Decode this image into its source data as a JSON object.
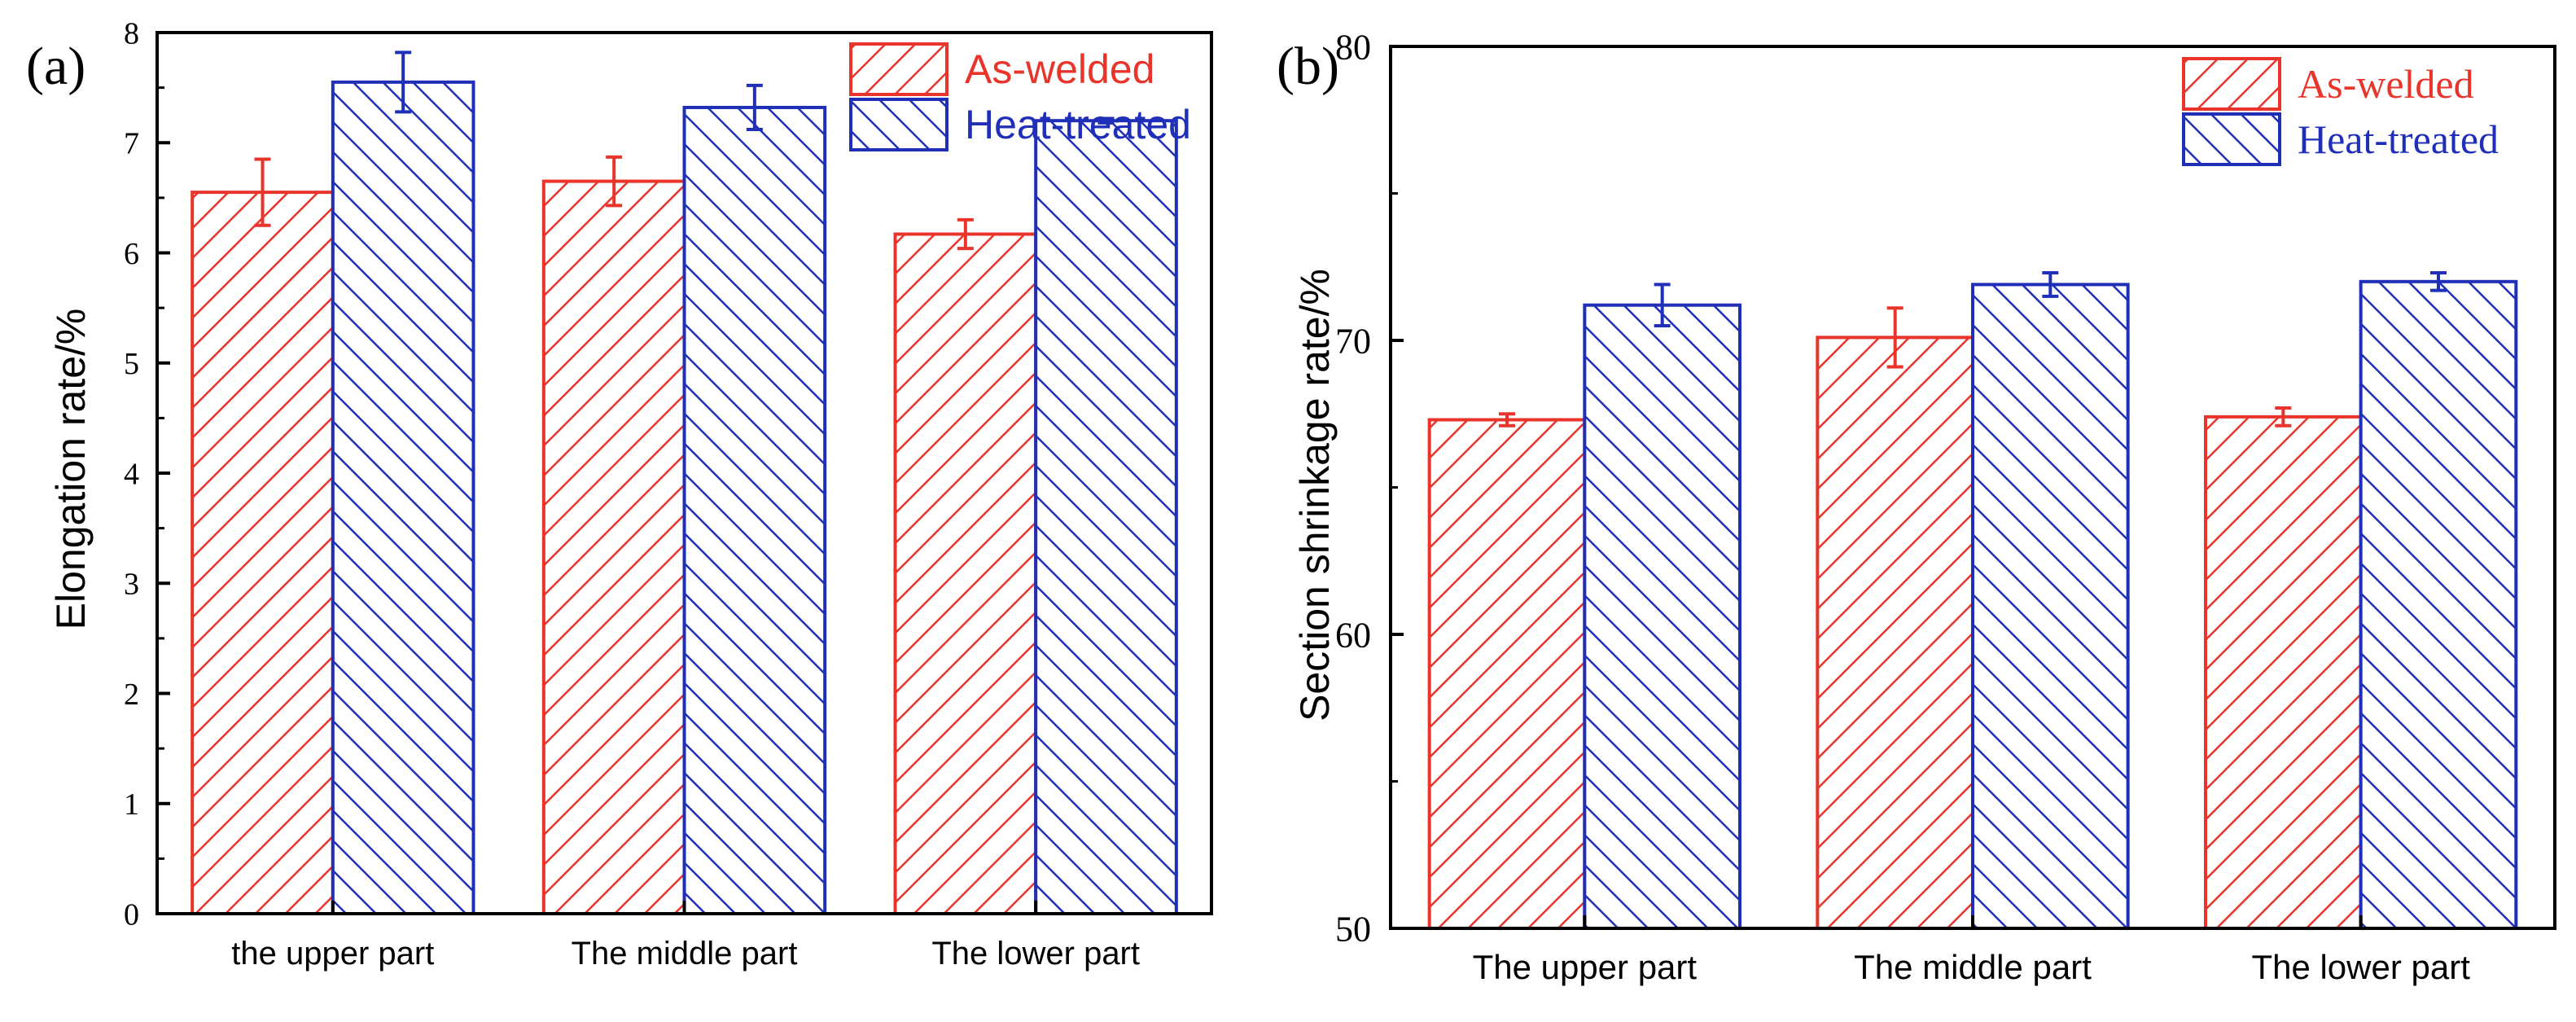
{
  "colors": {
    "as_welded": "#e8342a",
    "heat_treated": "#1f2fb8",
    "axis": "#000000"
  },
  "chart_data": [
    {
      "type": "bar",
      "panel_label": "(a)",
      "title": "",
      "xlabel": "",
      "ylabel": "Elongation rate/%",
      "categories": [
        "the upper part",
        "The middle part",
        "The lower part"
      ],
      "ylim": [
        0,
        8
      ],
      "yticks": [
        "0",
        "1",
        "2",
        "3",
        "4",
        "5",
        "6",
        "7",
        "8"
      ],
      "legend_position": "top-right",
      "series": [
        {
          "name": "As-welded",
          "values": [
            6.55,
            6.65,
            6.17
          ],
          "errors": [
            0.3,
            0.22,
            0.13
          ]
        },
        {
          "name": "Heat-treated",
          "values": [
            7.55,
            7.32,
            7.2
          ],
          "errors": [
            0.27,
            0.2,
            0.02
          ]
        }
      ]
    },
    {
      "type": "bar",
      "panel_label": "(b)",
      "title": "",
      "xlabel": "",
      "ylabel": "Section shrinkage rate/%",
      "categories": [
        "The upper part",
        "The middle part",
        "The lower part"
      ],
      "ylim": [
        50,
        80
      ],
      "yticks": [
        "50",
        "60",
        "70",
        "80"
      ],
      "legend_position": "top-right",
      "series": [
        {
          "name": "As-welded",
          "values": [
            67.3,
            70.1,
            67.4
          ],
          "errors": [
            0.2,
            1.0,
            0.3
          ]
        },
        {
          "name": "Heat-treated",
          "values": [
            71.2,
            71.9,
            72.0
          ],
          "errors": [
            0.7,
            0.4,
            0.3
          ]
        }
      ]
    }
  ]
}
